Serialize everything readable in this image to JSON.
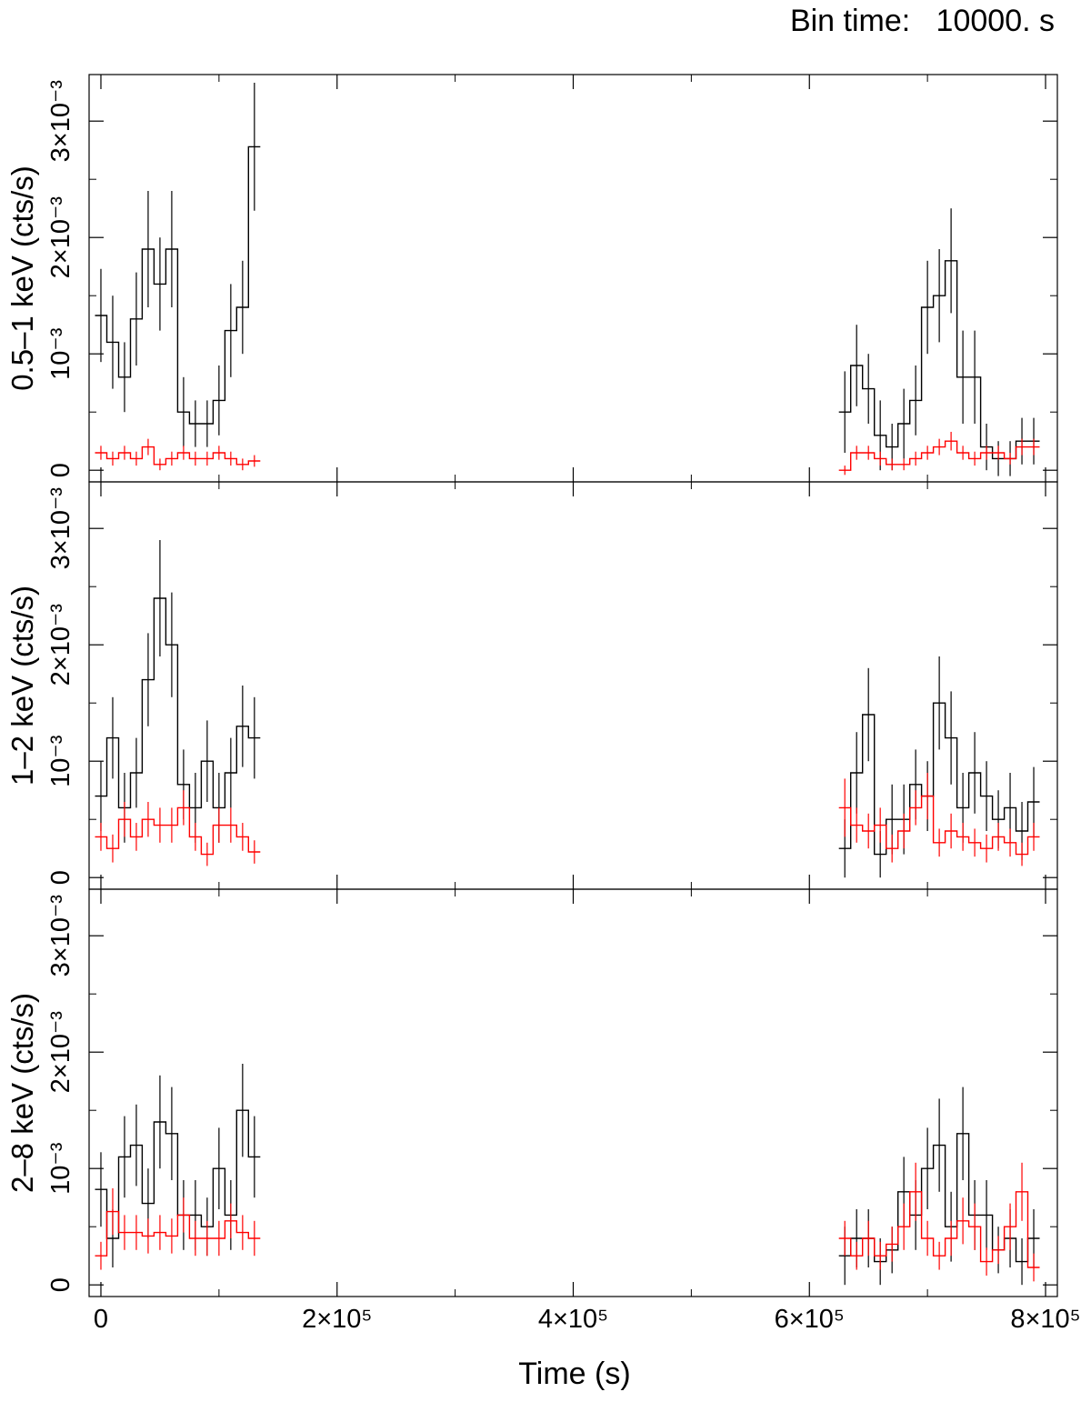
{
  "header": {
    "bin_label": "Bin time:   10000. s"
  },
  "chart_data": {
    "type": "line",
    "subtype": "binned light curve with error bars",
    "bin_width": 10000,
    "xlabel": "Time (s)",
    "x_tick_labels": [
      "0",
      "2×10⁵",
      "4×10⁵",
      "6×10⁵",
      "8×10⁵"
    ],
    "xlim": [
      -10000,
      810000
    ],
    "ylim": [
      -0.0001,
      0.0034
    ],
    "y_tick_labels": [
      "0",
      "10⁻³",
      "2×10⁻³",
      "3×10⁻³"
    ],
    "series_colors": {
      "black": "#000000",
      "red": "#ff0000"
    },
    "panels": [
      {
        "ylabel": "0.5–1 keV (cts/s)",
        "series": [
          {
            "color": "black",
            "segments": [
              {
                "x": [
                  0,
                  10000,
                  20000,
                  30000,
                  40000,
                  50000,
                  60000,
                  70000,
                  80000,
                  90000,
                  100000,
                  110000,
                  120000,
                  130000
                ],
                "y": [
                  0.00133,
                  0.0011,
                  0.0008,
                  0.0013,
                  0.0019,
                  0.0016,
                  0.0019,
                  0.0005,
                  0.0004,
                  0.0004,
                  0.0006,
                  0.0012,
                  0.0014,
                  0.00278
                ],
                "err": [
                  0.0004,
                  0.0004,
                  0.0003,
                  0.0004,
                  0.0005,
                  0.0004,
                  0.0005,
                  0.0003,
                  0.0002,
                  0.0002,
                  0.0003,
                  0.0004,
                  0.0004,
                  0.00055
                ]
              },
              {
                "x": [
                  630000,
                  640000,
                  650000,
                  660000,
                  670000,
                  680000,
                  690000,
                  700000,
                  710000,
                  720000,
                  730000,
                  740000,
                  750000,
                  760000,
                  770000,
                  780000,
                  790000
                ],
                "y": [
                  0.0005,
                  0.0009,
                  0.0007,
                  0.0003,
                  0.0002,
                  0.0004,
                  0.0006,
                  0.0014,
                  0.0015,
                  0.0018,
                  0.0008,
                  0.0008,
                  0.0002,
                  0.0001,
                  0.0001,
                  0.00025,
                  0.00025
                ],
                "err": [
                  0.00035,
                  0.00035,
                  0.0003,
                  0.0003,
                  0.0002,
                  0.0003,
                  0.0003,
                  0.0004,
                  0.0004,
                  0.00045,
                  0.0004,
                  0.0004,
                  0.0002,
                  0.00015,
                  0.00015,
                  0.0002,
                  0.0002
                ]
              }
            ]
          },
          {
            "color": "red",
            "segments": [
              {
                "x": [
                  0,
                  10000,
                  20000,
                  30000,
                  40000,
                  50000,
                  60000,
                  70000,
                  80000,
                  90000,
                  100000,
                  110000,
                  120000,
                  130000
                ],
                "y": [
                  0.00015,
                  0.0001,
                  0.00015,
                  0.0001,
                  0.0002,
                  5e-05,
                  0.0001,
                  0.00015,
                  0.0001,
                  0.0001,
                  0.00015,
                  0.0001,
                  5e-05,
                  8e-05
                ],
                "err": [
                  6e-05,
                  6e-05,
                  6e-05,
                  6e-05,
                  7e-05,
                  5e-05,
                  6e-05,
                  6e-05,
                  6e-05,
                  6e-05,
                  6e-05,
                  6e-05,
                  5e-05,
                  5e-05
                ]
              },
              {
                "x": [
                  630000,
                  640000,
                  650000,
                  660000,
                  670000,
                  680000,
                  690000,
                  700000,
                  710000,
                  720000,
                  730000,
                  740000,
                  750000,
                  760000,
                  770000,
                  780000,
                  790000
                ],
                "y": [
                  0.0,
                  0.00015,
                  0.00015,
                  0.0001,
                  5e-05,
                  5e-05,
                  0.0001,
                  0.00015,
                  0.0002,
                  0.00025,
                  0.00015,
                  0.0001,
                  0.00015,
                  0.00015,
                  0.0001,
                  0.0002,
                  0.0002
                ],
                "err": [
                  4e-05,
                  6e-05,
                  6e-05,
                  6e-05,
                  5e-05,
                  5e-05,
                  6e-05,
                  6e-05,
                  7e-05,
                  8e-05,
                  6e-05,
                  6e-05,
                  6e-05,
                  6e-05,
                  5e-05,
                  7e-05,
                  7e-05
                ]
              }
            ]
          }
        ]
      },
      {
        "ylabel": "1–2 keV (cts/s)",
        "series": [
          {
            "color": "black",
            "segments": [
              {
                "x": [
                  0,
                  10000,
                  20000,
                  30000,
                  40000,
                  50000,
                  60000,
                  70000,
                  80000,
                  90000,
                  100000,
                  110000,
                  120000,
                  130000
                ],
                "y": [
                  0.0007,
                  0.0012,
                  0.0006,
                  0.0009,
                  0.0017,
                  0.0024,
                  0.002,
                  0.0008,
                  0.0006,
                  0.001,
                  0.0006,
                  0.0009,
                  0.0013,
                  0.0012
                ],
                "err": [
                  0.0003,
                  0.00035,
                  0.0003,
                  0.0003,
                  0.0004,
                  0.0005,
                  0.00045,
                  0.0003,
                  0.0003,
                  0.00035,
                  0.0003,
                  0.0003,
                  0.00035,
                  0.00035
                ]
              },
              {
                "x": [
                  630000,
                  640000,
                  650000,
                  660000,
                  670000,
                  680000,
                  690000,
                  700000,
                  710000,
                  720000,
                  730000,
                  740000,
                  750000,
                  760000,
                  770000,
                  780000,
                  790000
                ],
                "y": [
                  0.00025,
                  0.0009,
                  0.0014,
                  0.0002,
                  0.0005,
                  0.0005,
                  0.0008,
                  0.0007,
                  0.0015,
                  0.0012,
                  0.0006,
                  0.0009,
                  0.0007,
                  0.0005,
                  0.0006,
                  0.0004,
                  0.00065
                ],
                "err": [
                  0.00025,
                  0.00035,
                  0.0004,
                  0.0002,
                  0.0003,
                  0.0003,
                  0.0003,
                  0.0003,
                  0.0004,
                  0.0004,
                  0.0003,
                  0.00035,
                  0.0003,
                  0.00025,
                  0.0003,
                  0.00025,
                  0.0003
                ]
              }
            ]
          },
          {
            "color": "red",
            "segments": [
              {
                "x": [
                  0,
                  10000,
                  20000,
                  30000,
                  40000,
                  50000,
                  60000,
                  70000,
                  80000,
                  90000,
                  100000,
                  110000,
                  120000,
                  130000
                ],
                "y": [
                  0.00035,
                  0.00025,
                  0.0005,
                  0.00035,
                  0.0005,
                  0.00045,
                  0.00045,
                  0.0006,
                  0.00035,
                  0.0002,
                  0.00045,
                  0.00045,
                  0.00035,
                  0.00022
                ],
                "err": [
                  0.00012,
                  0.00012,
                  0.00015,
                  0.00012,
                  0.00015,
                  0.00015,
                  0.00015,
                  0.00015,
                  0.00012,
                  0.0001,
                  0.00015,
                  0.00015,
                  0.00012,
                  0.0001
                ]
              },
              {
                "x": [
                  630000,
                  640000,
                  650000,
                  660000,
                  670000,
                  680000,
                  690000,
                  700000,
                  710000,
                  720000,
                  730000,
                  740000,
                  750000,
                  760000,
                  770000,
                  780000,
                  790000
                ],
                "y": [
                  0.0006,
                  0.00045,
                  0.0004,
                  0.00045,
                  0.00025,
                  0.0004,
                  0.0006,
                  0.0007,
                  0.0003,
                  0.0004,
                  0.00035,
                  0.0003,
                  0.00025,
                  0.00035,
                  0.0003,
                  0.0002,
                  0.00035
                ],
                "err": [
                  0.00025,
                  0.00015,
                  0.00015,
                  0.00015,
                  0.00012,
                  0.00015,
                  0.00015,
                  0.0002,
                  0.00012,
                  0.00015,
                  0.00012,
                  0.00012,
                  0.00012,
                  0.00012,
                  0.00012,
                  0.0001,
                  0.00012
                ]
              }
            ]
          }
        ]
      },
      {
        "ylabel": "2–8 keV (cts/s)",
        "xlabel": "Time (s)",
        "series": [
          {
            "color": "black",
            "segments": [
              {
                "x": [
                  0,
                  10000,
                  20000,
                  30000,
                  40000,
                  50000,
                  60000,
                  70000,
                  80000,
                  90000,
                  100000,
                  110000,
                  120000,
                  130000
                ],
                "y": [
                  0.00082,
                  0.0004,
                  0.0011,
                  0.0012,
                  0.0007,
                  0.0014,
                  0.0013,
                  0.0006,
                  0.0006,
                  0.0005,
                  0.001,
                  0.0006,
                  0.0015,
                  0.0011
                ],
                "err": [
                  0.00032,
                  0.00025,
                  0.00035,
                  0.00035,
                  0.0003,
                  0.0004,
                  0.0004,
                  0.0003,
                  0.0003,
                  0.00025,
                  0.00035,
                  0.0003,
                  0.0004,
                  0.00035
                ]
              },
              {
                "x": [
                  630000,
                  640000,
                  650000,
                  660000,
                  670000,
                  680000,
                  690000,
                  700000,
                  710000,
                  720000,
                  730000,
                  740000,
                  750000,
                  760000,
                  770000,
                  780000,
                  790000
                ],
                "y": [
                  0.00025,
                  0.0004,
                  0.0004,
                  0.0002,
                  0.0003,
                  0.0008,
                  0.0006,
                  0.001,
                  0.0012,
                  0.0005,
                  0.0013,
                  0.0006,
                  0.0006,
                  0.0003,
                  0.0004,
                  0.0002,
                  0.0004
                ],
                "err": [
                  0.00025,
                  0.00025,
                  0.00025,
                  0.0002,
                  0.0002,
                  0.0003,
                  0.0003,
                  0.00035,
                  0.0004,
                  0.0003,
                  0.0004,
                  0.0003,
                  0.0003,
                  0.0002,
                  0.00025,
                  0.0002,
                  0.00025
                ]
              }
            ]
          },
          {
            "color": "red",
            "segments": [
              {
                "x": [
                  0,
                  10000,
                  20000,
                  30000,
                  40000,
                  50000,
                  60000,
                  70000,
                  80000,
                  90000,
                  100000,
                  110000,
                  120000,
                  130000
                ],
                "y": [
                  0.00025,
                  0.00063,
                  0.00045,
                  0.00045,
                  0.00042,
                  0.00045,
                  0.00042,
                  0.0006,
                  0.0004,
                  0.0004,
                  0.0004,
                  0.00055,
                  0.00045,
                  0.0004
                ],
                "err": [
                  0.00012,
                  0.0002,
                  0.00015,
                  0.00015,
                  0.00015,
                  0.00015,
                  0.00015,
                  0.00015,
                  0.00015,
                  0.00015,
                  0.00015,
                  0.00015,
                  0.00015,
                  0.00015
                ]
              },
              {
                "x": [
                  630000,
                  640000,
                  650000,
                  660000,
                  670000,
                  680000,
                  690000,
                  700000,
                  710000,
                  720000,
                  730000,
                  740000,
                  750000,
                  760000,
                  770000,
                  780000,
                  790000
                ],
                "y": [
                  0.0004,
                  0.00025,
                  0.0004,
                  0.00025,
                  0.00035,
                  0.0005,
                  0.0008,
                  0.0004,
                  0.00025,
                  0.0004,
                  0.00055,
                  0.0005,
                  0.0002,
                  0.0003,
                  0.0005,
                  0.0008,
                  0.00015
                ],
                "err": [
                  0.00015,
                  0.00012,
                  0.00015,
                  0.00012,
                  0.00015,
                  0.0002,
                  0.00025,
                  0.00015,
                  0.00012,
                  0.00015,
                  0.0002,
                  0.0002,
                  0.00012,
                  0.00012,
                  0.0002,
                  0.00025,
                  0.00012
                ]
              }
            ]
          }
        ]
      }
    ]
  }
}
